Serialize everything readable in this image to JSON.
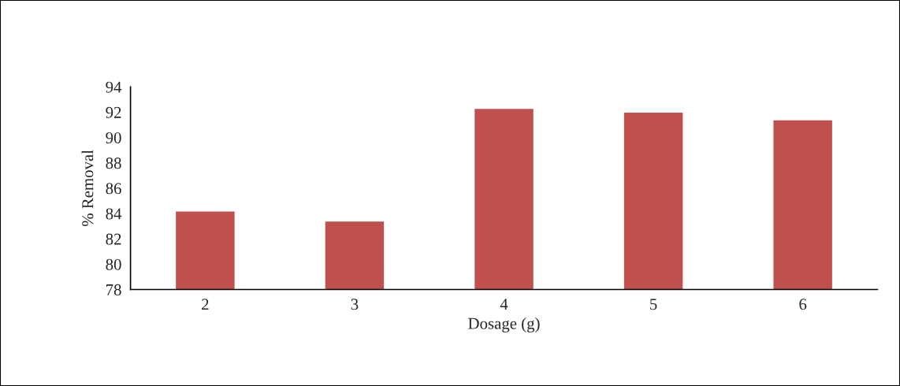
{
  "chart_data": {
    "type": "bar",
    "xlabel": "Dosage (g)",
    "ylabel": "% Removal",
    "categories": [
      "2",
      "3",
      "4",
      "5",
      "6"
    ],
    "values": [
      84.2,
      83.4,
      92.3,
      92.0,
      91.4
    ],
    "color": "#c0504d",
    "ylim": [
      78,
      94
    ],
    "yticks": [
      78,
      80,
      82,
      84,
      86,
      88,
      90,
      92,
      94
    ],
    "grid": false,
    "legend": false
  }
}
